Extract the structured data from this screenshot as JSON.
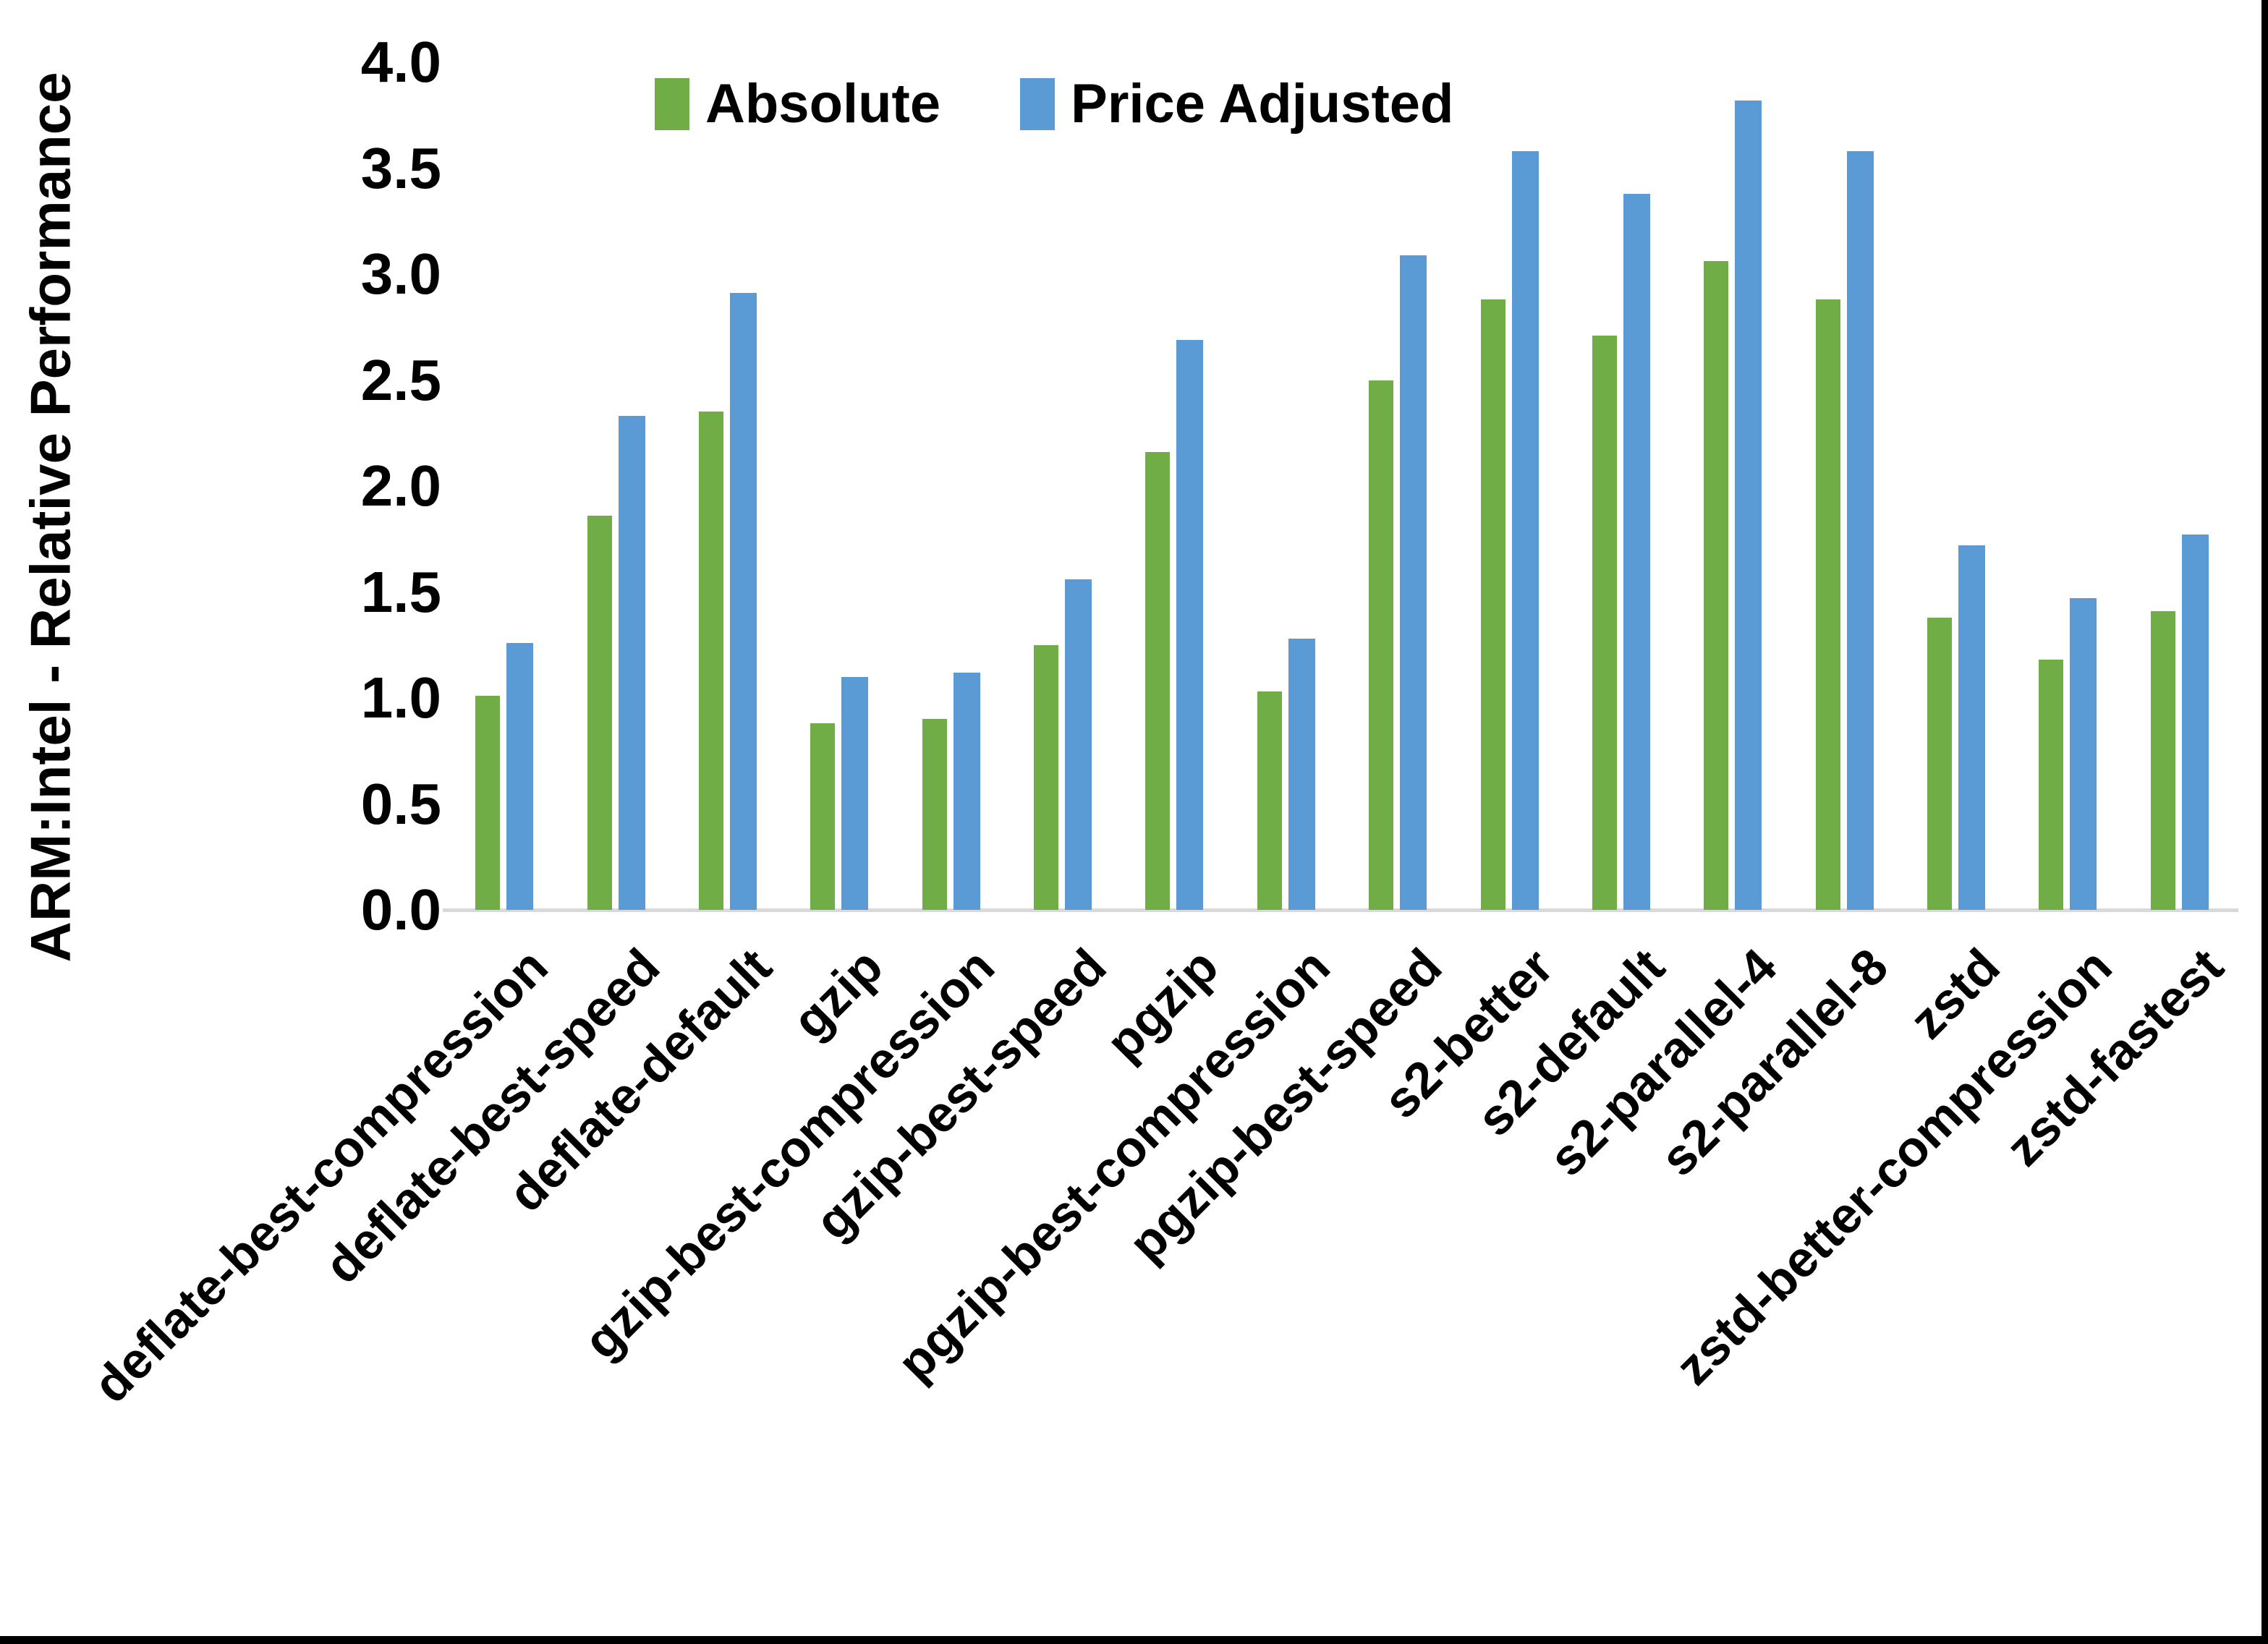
{
  "chart_data": {
    "type": "bar",
    "ylabel": "ARM:Intel - Relative Performance",
    "xlabel": "",
    "ylim": [
      0.0,
      4.0
    ],
    "y_ticks": [
      "0.0",
      "0.5",
      "1.0",
      "1.5",
      "2.0",
      "2.5",
      "3.0",
      "3.5",
      "4.0"
    ],
    "grid": false,
    "legend_position": "top-center-inside",
    "categories": [
      "deflate-best-compression",
      "deflate-best-speed",
      "deflate-default",
      "gzip",
      "gzip-best-compression",
      "gzip-best-speed",
      "pgzip",
      "pgzip-best-compression",
      "pgzip-best-speed",
      "s2-better",
      "s2-default",
      "s2-parallel-4",
      "s2-parallel-8",
      "zstd",
      "zstd-better-compression",
      "zstd-fastest"
    ],
    "series": [
      {
        "name": "Absolute",
        "color": "#70AD47",
        "values": [
          1.01,
          1.86,
          2.35,
          0.88,
          0.9,
          1.25,
          2.16,
          1.03,
          2.5,
          2.88,
          2.71,
          3.06,
          2.88,
          1.38,
          1.18,
          1.41
        ]
      },
      {
        "name": "Price Adjusted",
        "color": "#5B9BD5",
        "values": [
          1.26,
          2.33,
          2.91,
          1.1,
          1.12,
          1.56,
          2.69,
          1.28,
          3.09,
          3.58,
          3.38,
          3.82,
          3.58,
          1.72,
          1.47,
          1.77
        ]
      }
    ]
  },
  "legend": [
    {
      "label": "Absolute",
      "color": "#70AD47"
    },
    {
      "label": "Price Adjusted",
      "color": "#5B9BD5"
    }
  ],
  "colors": {
    "background": "#FFFFFF",
    "axis_line": "#D9D9D9",
    "text": "#000000",
    "frame_border": "#000000"
  }
}
